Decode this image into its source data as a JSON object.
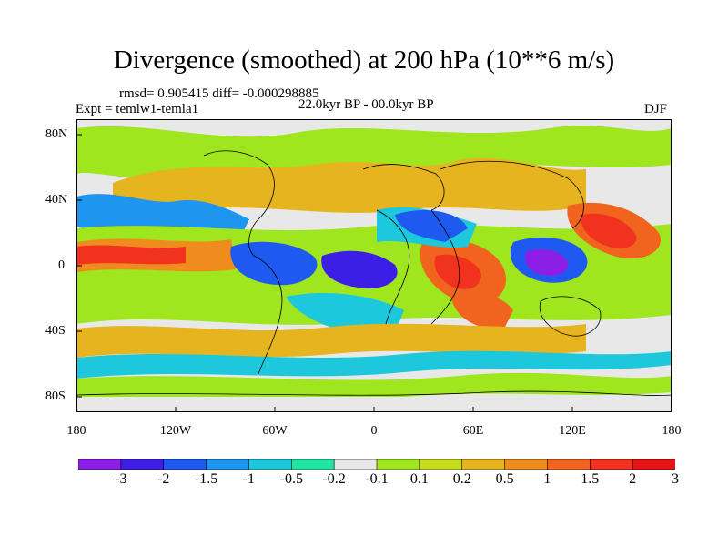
{
  "title": "Divergence (smoothed) at 200 hPa (10**6 m/s)",
  "stats": "rmsd= 0.905415 diff= -0.000298885",
  "experiment": "Expt = temlw1-temla1",
  "period": "22.0kyr BP - 00.0kyr BP",
  "season": "DJF",
  "map": {
    "lat_labels": [
      "80N",
      "40N",
      "0",
      "40S",
      "80S"
    ],
    "lon_labels": [
      "180",
      "120W",
      "60W",
      "0",
      "60E",
      "120E",
      "180"
    ]
  },
  "colorbar": {
    "colors": [
      "#8c1ee6",
      "#3c1ee6",
      "#1e5af0",
      "#1e96f0",
      "#1ec8dc",
      "#1ee6a0",
      "#e8e8e8",
      "#a0e61e",
      "#c8dc1e",
      "#e6b41e",
      "#f08c1e",
      "#f0641e",
      "#f0321e",
      "#e61414"
    ],
    "labels": [
      "-3",
      "-2",
      "-1.5",
      "-1",
      "-0.5",
      "-0.2",
      "-0.1",
      "0.1",
      "0.2",
      "0.5",
      "1",
      "1.5",
      "2",
      "3"
    ]
  }
}
